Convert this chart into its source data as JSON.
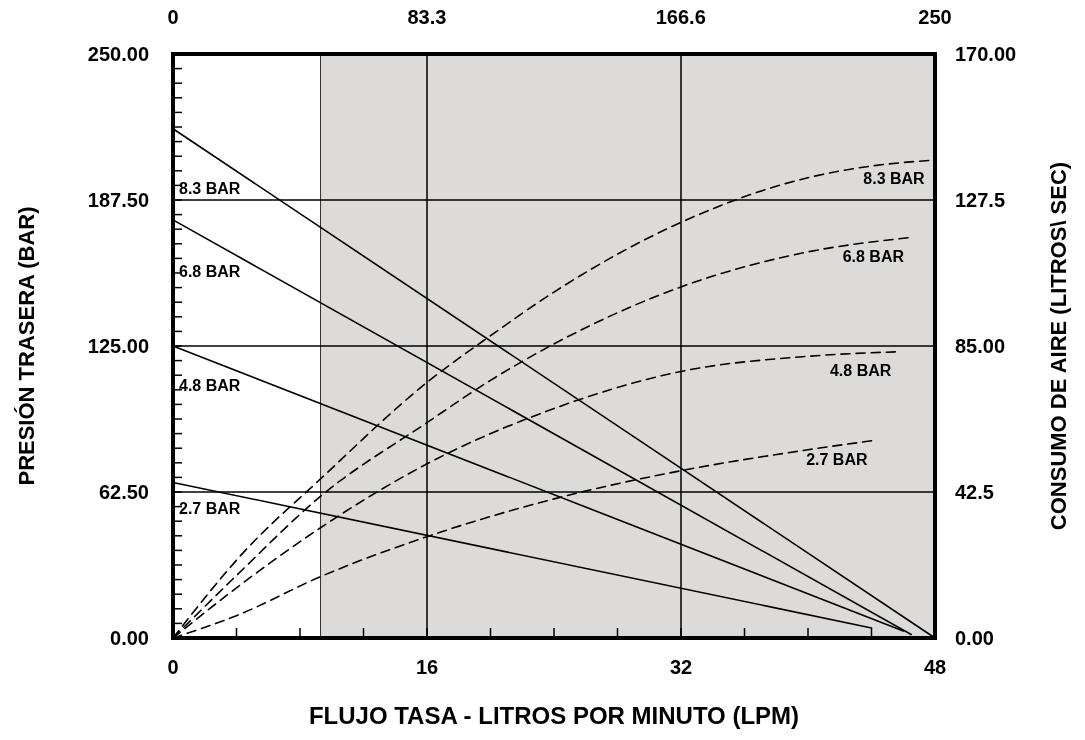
{
  "chart_data": {
    "type": "line",
    "xlabel": "FLUJO TASA - LITROS POR MINUTO (LPM)",
    "ylabel": "PRESIÓN TRASERA (BAR)",
    "y2label": "CONSUMO DE AIRE (LITROS\\ SEC)",
    "xlim": [
      0,
      48
    ],
    "xticks": [
      0,
      {
        "value": 4,
        "label": null
      },
      {
        "value": 8,
        "label": null
      },
      {
        "value": 12,
        "label": null
      },
      16,
      {
        "value": 20,
        "label": null
      },
      {
        "value": 24,
        "label": null
      },
      {
        "value": 28,
        "label": null
      },
      32,
      {
        "value": 36,
        "label": null
      },
      {
        "value": 40,
        "label": null
      },
      {
        "value": 44,
        "label": null
      },
      48
    ],
    "x2lim": [
      0,
      250
    ],
    "x2ticks": [
      0,
      83.3,
      166.6,
      250
    ],
    "ylim": [
      0,
      250
    ],
    "yticks": [
      {
        "value": 0,
        "label": "0.00"
      },
      {
        "value": 6.25,
        "label": null
      },
      {
        "value": 12.5,
        "label": null
      },
      {
        "value": 18.75,
        "label": null
      },
      {
        "value": 25,
        "label": null
      },
      {
        "value": 31.25,
        "label": null
      },
      {
        "value": 37.5,
        "label": null
      },
      {
        "value": 43.75,
        "label": null
      },
      {
        "value": 50,
        "label": null
      },
      {
        "value": 56.25,
        "label": null
      },
      {
        "value": 62.5,
        "label": "62.50"
      },
      {
        "value": 68.75,
        "label": null
      },
      {
        "value": 75,
        "label": null
      },
      {
        "value": 81.25,
        "label": null
      },
      {
        "value": 87.5,
        "label": null
      },
      {
        "value": 93.75,
        "label": null
      },
      {
        "value": 100,
        "label": null
      },
      {
        "value": 106.25,
        "label": null
      },
      {
        "value": 112.5,
        "label": null
      },
      {
        "value": 118.75,
        "label": null
      },
      {
        "value": 125,
        "label": "125.00"
      },
      {
        "value": 131.25,
        "label": null
      },
      {
        "value": 137.5,
        "label": null
      },
      {
        "value": 143.75,
        "label": null
      },
      {
        "value": 150,
        "label": null
      },
      {
        "value": 156.25,
        "label": null
      },
      {
        "value": 162.5,
        "label": null
      },
      {
        "value": 168.75,
        "label": null
      },
      {
        "value": 175,
        "label": null
      },
      {
        "value": 181.25,
        "label": null
      },
      {
        "value": 187.5,
        "label": "187.50"
      },
      {
        "value": 193.75,
        "label": null
      },
      {
        "value": 200,
        "label": null
      },
      {
        "value": 206.25,
        "label": null
      },
      {
        "value": 212.5,
        "label": null
      },
      {
        "value": 218.75,
        "label": null
      },
      {
        "value": 225,
        "label": null
      },
      {
        "value": 231.25,
        "label": null
      },
      {
        "value": 237.5,
        "label": null
      },
      {
        "value": 243.75,
        "label": null
      },
      {
        "value": 250,
        "label": "250.00"
      }
    ],
    "y2lim": [
      0,
      170
    ],
    "y2ticks": [
      {
        "value": 0,
        "label": "0.00"
      },
      42.5,
      {
        "value": 85,
        "label": "85.00"
      },
      127.5,
      {
        "value": 170,
        "label": "170.00"
      }
    ],
    "grid": true,
    "bands": [
      {
        "axis": "x",
        "from": 9.3,
        "to": 48,
        "color": "#dcdbda"
      }
    ],
    "series": [
      {
        "name": "8.3 BAR",
        "color": "#000000",
        "line_style": "solid",
        "x": [
          0,
          48
        ],
        "values": [
          218,
          0
        ]
      },
      {
        "name": "6.8 BAR",
        "color": "#000000",
        "line_style": "solid",
        "x": [
          0,
          46.5
        ],
        "values": [
          179,
          1.5
        ]
      },
      {
        "name": "4.8 BAR",
        "color": "#000000",
        "line_style": "solid",
        "x": [
          0,
          46
        ],
        "values": [
          125,
          3
        ]
      },
      {
        "name": "2.7 BAR",
        "color": "#000000",
        "line_style": "solid",
        "x": [
          0,
          44
        ],
        "values": [
          66.6,
          4.3
        ]
      },
      {
        "name": "8.3 BAR",
        "color": "#000000",
        "line_style": "dashed",
        "axis": "y2",
        "x": [
          0,
          4.4,
          9.36,
          16,
          20,
          24,
          32,
          40,
          44,
          47.6
        ],
        "values": [
          0,
          24.7,
          46.6,
          74.4,
          88,
          100.7,
          121,
          134,
          137.4,
          139
        ]
      },
      {
        "name": "6.8 BAR",
        "color": "#000000",
        "line_style": "dashed",
        "axis": "y2",
        "x": [
          0,
          4,
          9.36,
          16,
          20,
          24,
          32,
          40,
          46.3
        ],
        "values": [
          0,
          18.2,
          41.5,
          62.7,
          75,
          85.6,
          102.2,
          112.4,
          116.5
        ]
      },
      {
        "name": "4.8 BAR",
        "color": "#000000",
        "line_style": "dashed",
        "axis": "y2",
        "x": [
          0,
          4,
          9.36,
          16,
          24,
          32,
          40,
          45.5
        ],
        "values": [
          0,
          14.6,
          32.3,
          50.7,
          66.8,
          77.6,
          82,
          83.3
        ]
      },
      {
        "name": "2.7 BAR",
        "color": "#000000",
        "line_style": "dashed",
        "axis": "y2",
        "x": [
          0,
          4,
          9.36,
          16,
          24,
          32,
          40,
          44
        ],
        "values": [
          0,
          6.5,
          18,
          29.5,
          40.5,
          48.7,
          54.8,
          57.4
        ]
      }
    ]
  }
}
